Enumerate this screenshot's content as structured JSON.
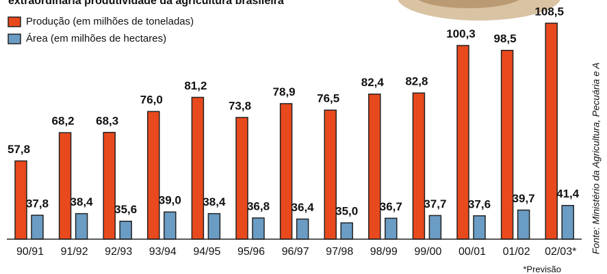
{
  "chart_data": {
    "type": "bar",
    "title": "extraordinária produtividade da agricultura brasileira",
    "categories": [
      "90/91",
      "91/92",
      "92/93",
      "93/94",
      "94/95",
      "95/96",
      "96/97",
      "97/98",
      "98/99",
      "99/00",
      "00/01",
      "01/02",
      "02/03*"
    ],
    "series": [
      {
        "name": "Produção (em milhões de toneladas)",
        "color": "#e8491d",
        "values": [
          57.8,
          68.2,
          68.3,
          76.0,
          81.2,
          73.8,
          78.9,
          76.5,
          82.4,
          82.8,
          100.3,
          98.5,
          108.5
        ],
        "value_labels": [
          "57,8",
          "68,2",
          "68,3",
          "76,0",
          "81,2",
          "73,8",
          "78,9",
          "76,5",
          "82,4",
          "82,8",
          "100,3",
          "98,5",
          "108,5"
        ]
      },
      {
        "name": "Área (em milhões de hectares)",
        "color": "#6a9cc4",
        "values": [
          37.8,
          38.4,
          35.6,
          39.0,
          38.4,
          36.8,
          36.4,
          35.0,
          36.7,
          37.7,
          37.6,
          39.7,
          41.4
        ],
        "value_labels": [
          "37,8",
          "38,4",
          "35,6",
          "39,0",
          "38,4",
          "36,8",
          "36,4",
          "35,0",
          "36,7",
          "37,7",
          "37,6",
          "39,7",
          "41,4"
        ]
      }
    ],
    "ylim": [
      29,
      110
    ],
    "note": "*Previsão",
    "source": "Fonte: Ministério da Agricultura, Pecuária e A"
  }
}
